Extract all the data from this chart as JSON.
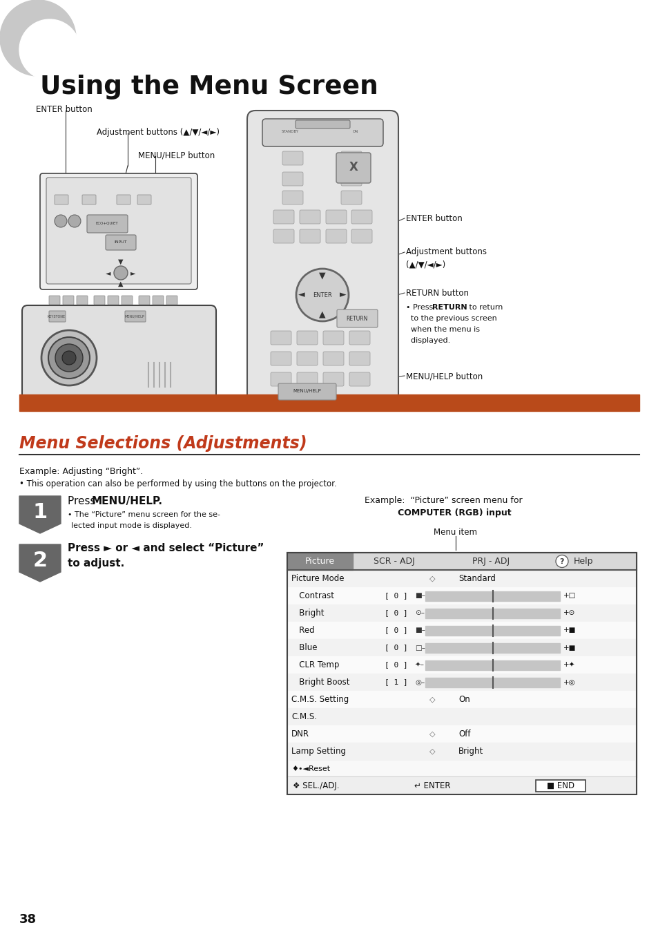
{
  "bg_color": "#ffffff",
  "page_width": 9.54,
  "page_height": 13.52,
  "title": "Using the Menu Screen",
  "section_title": "Menu Selections (Adjustments)",
  "orange_bar_color": "#b94a1a",
  "section_title_color": "#c0391a",
  "page_number": "38",
  "example_label": "Example: Adjusting “Bright”.",
  "bullet_note": "• This operation can also be performed by using the buttons on the projector.",
  "step1_sub": "• The “Picture” menu screen for the se-\n  lected input mode is displayed.",
  "example_title_line1": "Example:  “Picture” screen menu for",
  "example_title_line2": "COMPUTER (RGB) input",
  "menu_item_label": "Menu item",
  "menu_headers": [
    "Picture",
    "SCR - ADJ",
    "PRJ - ADJ",
    "Help"
  ],
  "return_note_line1": "• Press RETURN to return",
  "return_note_line2": "  to the previous screen",
  "return_note_line3": "  when the menu is",
  "return_note_line4": "  displayed."
}
